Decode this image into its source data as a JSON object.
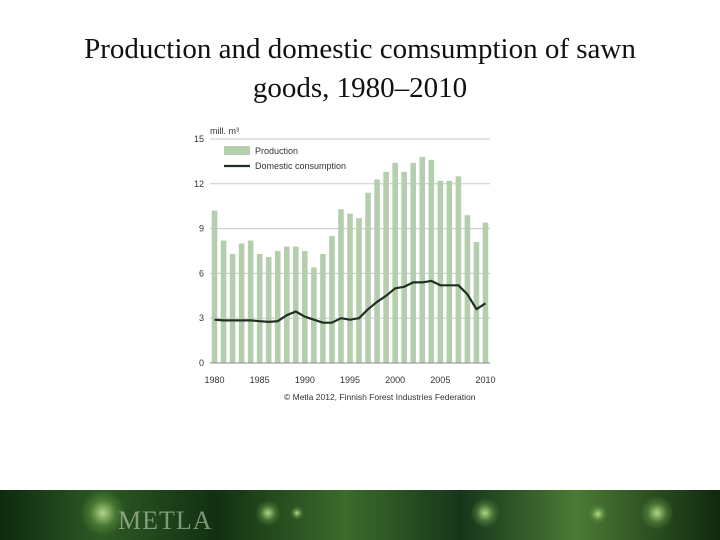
{
  "slide": {
    "title_line1": "Production and domestic comsumption of sawn",
    "title_line2": "goods, 1980–2010",
    "footer_logo": "METLA"
  },
  "chart_data": {
    "type": "bar",
    "unit_label": "mill. m³",
    "x_tick_labels": [
      "1980",
      "1985",
      "1990",
      "1995",
      "2000",
      "2005",
      "2010"
    ],
    "y_tick_labels": [
      "0",
      "3",
      "6",
      "9",
      "12",
      "15"
    ],
    "ylim": [
      0,
      15
    ],
    "grid": true,
    "legend_position": "top-left",
    "source": "© Metla 2012, Finnish Forest Industries Federation",
    "colors": {
      "bar": "#b5cfae",
      "line": "#1f2f22",
      "grid": "#c8c8c8"
    },
    "x": [
      1980,
      1981,
      1982,
      1983,
      1984,
      1985,
      1986,
      1987,
      1988,
      1989,
      1990,
      1991,
      1992,
      1993,
      1994,
      1995,
      1996,
      1997,
      1998,
      1999,
      2000,
      2001,
      2002,
      2003,
      2004,
      2005,
      2006,
      2007,
      2008,
      2009,
      2010
    ],
    "series": [
      {
        "name": "Production",
        "type": "bar",
        "values": [
          10.2,
          8.2,
          7.3,
          8.0,
          8.2,
          7.3,
          7.1,
          7.5,
          7.8,
          7.8,
          7.5,
          6.4,
          7.3,
          8.5,
          10.3,
          10.0,
          9.7,
          11.4,
          12.3,
          12.8,
          13.4,
          12.8,
          13.4,
          13.8,
          13.6,
          12.2,
          12.2,
          12.5,
          9.9,
          8.1,
          9.4
        ]
      },
      {
        "name": "Domestic consumption",
        "type": "line",
        "values": [
          2.9,
          2.85,
          2.85,
          2.85,
          2.85,
          2.8,
          2.75,
          2.8,
          3.2,
          3.45,
          3.1,
          2.9,
          2.7,
          2.7,
          3.0,
          2.9,
          3.0,
          3.6,
          4.1,
          4.5,
          5.0,
          5.1,
          5.4,
          5.4,
          5.5,
          5.2,
          5.2,
          5.2,
          4.6,
          3.6,
          4.0
        ]
      }
    ]
  }
}
